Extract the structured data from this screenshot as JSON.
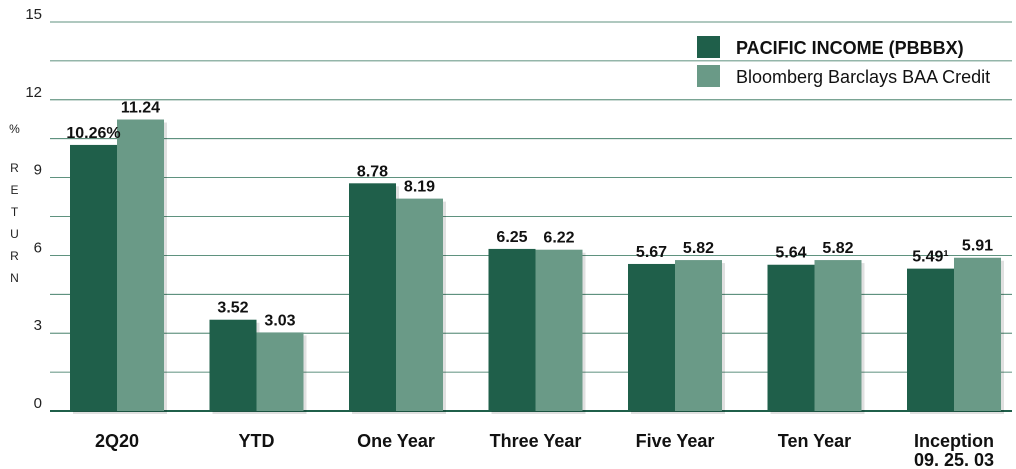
{
  "chart_data": {
    "type": "bar",
    "title": "",
    "xlabel": "",
    "ylabel": "RETURN %",
    "ylabel_letters": [
      "R",
      "E",
      "T",
      "U",
      "R",
      "N"
    ],
    "ylabel_unit": "%",
    "ylim": [
      0,
      15
    ],
    "yticks": [
      0,
      3,
      6,
      9,
      12,
      15
    ],
    "grid": true,
    "legend_position": "top-right",
    "categories": [
      "2Q20",
      "YTD",
      "One Year",
      "Three Year",
      "Five Year",
      "Ten Year",
      "Inception 09. 25. 03"
    ],
    "category_lines": [
      [
        "2Q20"
      ],
      [
        "YTD"
      ],
      [
        "One Year"
      ],
      [
        "Three Year"
      ],
      [
        "Five Year"
      ],
      [
        "Ten Year"
      ],
      [
        "Inception",
        "09. 25. 03"
      ]
    ],
    "series": [
      {
        "name": "PACIFIC INCOME (PBBBX)",
        "color": "#1f5f4a",
        "values": [
          10.26,
          3.52,
          8.78,
          6.25,
          5.67,
          5.64,
          5.49
        ],
        "labels": [
          "10.26%",
          "3.52",
          "8.78",
          "6.25",
          "5.67",
          "5.64",
          "5.49¹"
        ]
      },
      {
        "name": "Bloomberg Barclays BAA Credit",
        "color": "#6a9a87",
        "values": [
          11.24,
          3.03,
          8.19,
          6.22,
          5.82,
          5.82,
          5.91
        ],
        "labels": [
          "11.24",
          "3.03",
          "8.19",
          "6.22",
          "5.82",
          "5.82",
          "5.91"
        ]
      }
    ]
  }
}
